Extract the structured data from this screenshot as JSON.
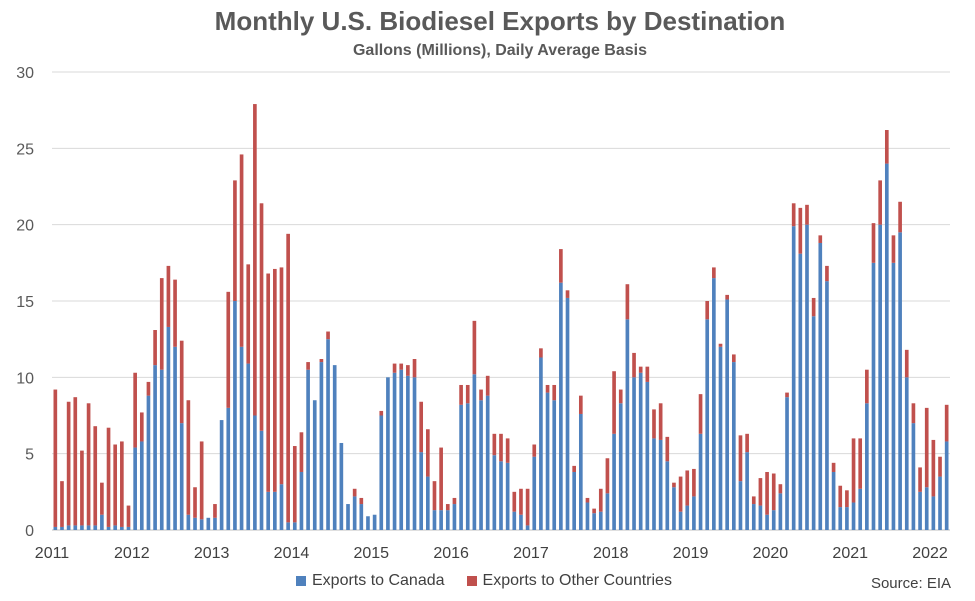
{
  "chart_data": {
    "type": "bar",
    "stacked": true,
    "title": "Monthly U.S. Biodiesel Exports by Destination",
    "subtitle": "Gallons (Millions), Daily Average Basis",
    "xlabel": "",
    "ylabel": "",
    "ylim": [
      0,
      30
    ],
    "yticks": [
      0,
      5,
      10,
      15,
      20,
      25,
      30
    ],
    "xticks": [
      "2011",
      "2012",
      "2013",
      "2014",
      "2015",
      "2016",
      "2017",
      "2018",
      "2019",
      "2020",
      "2021",
      "2022"
    ],
    "start_month": "2011-01",
    "grid": true,
    "legend_position": "bottom",
    "source": "Source: EIA",
    "series": [
      {
        "name": "Exports to Canada",
        "color": "#4F81BD",
        "values": [
          0.2,
          0.2,
          0.3,
          0.3,
          0.3,
          0.3,
          0.3,
          1.0,
          0.2,
          0.3,
          0.2,
          0.2,
          5.4,
          5.8,
          8.8,
          10.8,
          10.5,
          13.3,
          12.0,
          7.0,
          1.0,
          0.8,
          0.7,
          0.8,
          0.8,
          7.2,
          8.0,
          15.0,
          12.0,
          10.9,
          7.5,
          6.5,
          2.5,
          2.5,
          3.0,
          0.5,
          0.5,
          3.8,
          10.5,
          8.5,
          11.0,
          12.5,
          10.8,
          5.7,
          1.7,
          2.2,
          1.7,
          0.9,
          1.0,
          7.5,
          10.0,
          10.3,
          10.5,
          10.1,
          10.0,
          5.1,
          3.5,
          1.3,
          1.3,
          1.3,
          1.7,
          8.2,
          8.3,
          10.2,
          8.5,
          8.8,
          4.9,
          4.5,
          4.4,
          1.2,
          1.0,
          0.3,
          4.8,
          11.3,
          9.0,
          8.5,
          16.2,
          15.2,
          3.8,
          7.6,
          1.8,
          1.1,
          1.2,
          2.4,
          6.3,
          8.3,
          13.8,
          10.0,
          10.3,
          9.7,
          6.0,
          5.9,
          4.5,
          2.8,
          1.2,
          1.6,
          2.2,
          6.3,
          13.8,
          16.5,
          12.0,
          15.1,
          11.0,
          3.2,
          5.1,
          1.7,
          1.6,
          1.0,
          1.3,
          2.4,
          8.7,
          19.9,
          18.1,
          20.0,
          14.0,
          18.8,
          16.3,
          3.8,
          1.5,
          1.5,
          1.8,
          2.7,
          8.3,
          17.5,
          20.0,
          24.0,
          17.5,
          19.5,
          10.0,
          7.0,
          2.5,
          2.8,
          2.2,
          3.5,
          5.8
        ]
      },
      {
        "name": "Exports to Other Countries",
        "color": "#C0504D",
        "values": [
          9.0,
          3.0,
          8.1,
          8.4,
          4.9,
          8.0,
          6.5,
          2.1,
          6.5,
          5.3,
          5.6,
          1.4,
          4.9,
          1.9,
          0.9,
          2.3,
          6.0,
          4.0,
          4.4,
          5.4,
          7.5,
          2.0,
          5.1,
          0.0,
          0.9,
          0.0,
          7.6,
          7.9,
          12.6,
          6.5,
          20.4,
          14.9,
          14.3,
          14.6,
          14.2,
          18.9,
          5.0,
          2.6,
          0.5,
          0.0,
          0.2,
          0.5,
          0.0,
          0.0,
          0.0,
          0.5,
          0.4,
          0.0,
          0.0,
          0.3,
          0.0,
          0.6,
          0.4,
          0.7,
          1.2,
          3.3,
          3.1,
          1.9,
          4.1,
          0.4,
          0.4,
          1.3,
          1.2,
          3.5,
          0.7,
          1.3,
          1.4,
          1.8,
          1.6,
          1.3,
          1.7,
          2.4,
          0.8,
          0.6,
          0.5,
          1.0,
          2.2,
          0.5,
          0.4,
          1.2,
          0.3,
          0.3,
          1.5,
          2.3,
          4.1,
          0.9,
          2.3,
          1.6,
          0.4,
          1.0,
          1.9,
          2.4,
          1.6,
          0.3,
          2.3,
          2.3,
          1.8,
          2.6,
          1.2,
          0.7,
          0.2,
          0.3,
          0.5,
          3.0,
          1.2,
          0.5,
          1.8,
          2.8,
          2.4,
          0.6,
          0.3,
          1.5,
          3.0,
          1.3,
          1.2,
          0.5,
          1.0,
          0.6,
          1.4,
          1.1,
          4.2,
          3.3,
          2.2,
          2.6,
          2.9,
          2.2,
          1.8,
          2.0,
          1.8,
          1.3,
          1.6,
          5.2,
          3.7,
          1.3,
          2.4
        ]
      }
    ]
  }
}
